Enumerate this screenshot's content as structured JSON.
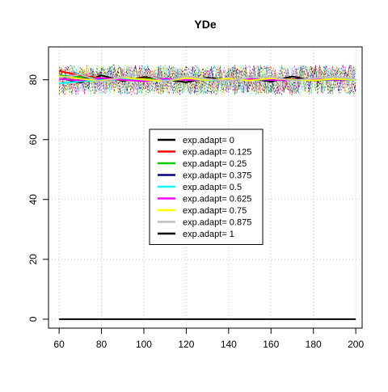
{
  "chart_data": {
    "type": "line",
    "title": "YDe",
    "xlabel": "",
    "ylabel": "",
    "xlim": [
      55,
      203
    ],
    "ylim": [
      -3,
      91
    ],
    "grid": true,
    "x_ticks": [
      60,
      80,
      100,
      120,
      140,
      160,
      180,
      200
    ],
    "y_ticks": [
      0,
      20,
      40,
      60,
      80
    ],
    "x": [
      60,
      70,
      80,
      90,
      100,
      110,
      120,
      130,
      140,
      150,
      160,
      170,
      180,
      190,
      200
    ],
    "legend_position": "center",
    "series": [
      {
        "name": "exp.adapt= 0",
        "color": "#000000",
        "values": [
          80.8,
          79.0,
          81.5,
          79.6,
          80.9,
          80.1,
          79.2,
          80.7,
          79.9,
          80.4,
          79.4,
          81.1,
          79.7,
          80.2,
          80.0
        ]
      },
      {
        "name": "exp.adapt= 0.125",
        "color": "#ff0000",
        "values": [
          83.0,
          81.4,
          80.6,
          79.9,
          80.5,
          80.2,
          80.0,
          79.8,
          80.3,
          80.1,
          79.9,
          80.2,
          80.0,
          80.1,
          80.0
        ]
      },
      {
        "name": "exp.adapt= 0.25",
        "color": "#00cd00",
        "values": [
          81.5,
          80.9,
          80.4,
          80.0,
          80.3,
          80.1,
          79.9,
          80.0,
          80.2,
          79.9,
          80.1,
          80.0,
          80.2,
          80.0,
          80.1
        ]
      },
      {
        "name": "exp.adapt= 0.375",
        "color": "#00008b",
        "values": [
          81.0,
          80.5,
          80.2,
          80.1,
          79.9,
          80.0,
          80.1,
          79.9,
          80.0,
          80.1,
          79.9,
          80.0,
          80.1,
          80.0,
          80.0
        ]
      },
      {
        "name": "exp.adapt= 0.5",
        "color": "#00ffff",
        "values": [
          78.8,
          79.5,
          79.9,
          80.3,
          79.7,
          80.0,
          80.2,
          79.8,
          80.1,
          79.9,
          80.2,
          79.8,
          80.0,
          80.1,
          79.9
        ]
      },
      {
        "name": "exp.adapt= 0.625",
        "color": "#ff00ff",
        "values": [
          80.3,
          79.8,
          80.6,
          80.0,
          79.5,
          80.4,
          79.9,
          80.2,
          79.7,
          80.3,
          80.0,
          79.8,
          80.2,
          80.0,
          80.1
        ]
      },
      {
        "name": "exp.adapt= 0.75",
        "color": "#ffff00",
        "values": [
          81.2,
          80.4,
          79.6,
          80.8,
          80.1,
          79.5,
          80.6,
          79.9,
          80.4,
          79.7,
          80.5,
          80.0,
          79.8,
          80.3,
          80.0
        ]
      },
      {
        "name": "exp.adapt= 0.875",
        "color": "#bebebe",
        "values": [
          80.6,
          81.8,
          79.3,
          80.9,
          82.0,
          79.4,
          81.2,
          80.3,
          79.6,
          80.8,
          81.0,
          79.7,
          80.5,
          81.1,
          80.2
        ]
      },
      {
        "name": "exp.adapt= 1",
        "color": "#000000",
        "values": [
          0,
          0,
          0,
          0,
          0,
          0,
          0,
          0,
          0,
          0,
          0,
          0,
          0,
          0,
          0
        ]
      }
    ]
  }
}
